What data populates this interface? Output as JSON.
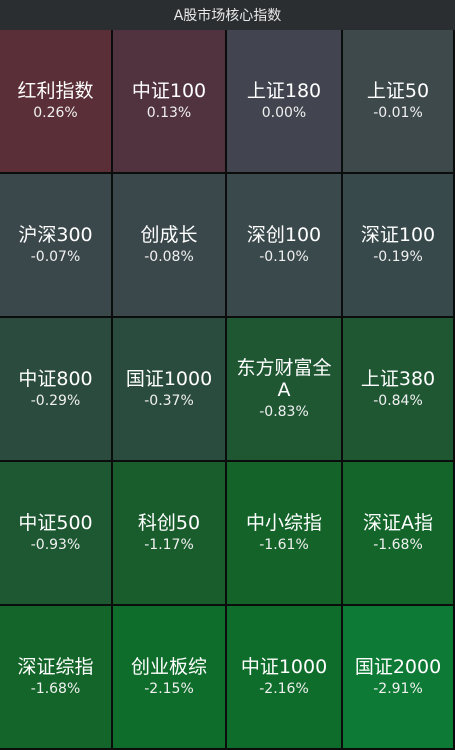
{
  "header": {
    "title": "A股市场核心指数"
  },
  "tiles": [
    {
      "name": "红利指数",
      "pct": "0.26%",
      "color": "#5a2f37"
    },
    {
      "name": "中证100",
      "pct": "0.13%",
      "color": "#513340"
    },
    {
      "name": "上证180",
      "pct": "0.00%",
      "color": "#42444f"
    },
    {
      "name": "上证50",
      "pct": "-0.01%",
      "color": "#3e494b"
    },
    {
      "name": "沪深300",
      "pct": "-0.07%",
      "color": "#3b484b"
    },
    {
      "name": "创成长",
      "pct": "-0.08%",
      "color": "#3b484b"
    },
    {
      "name": "深创100",
      "pct": "-0.10%",
      "color": "#3a494b"
    },
    {
      "name": "深证100",
      "pct": "-0.19%",
      "color": "#37494a"
    },
    {
      "name": "中证800",
      "pct": "-0.29%",
      "color": "#2c4b3f"
    },
    {
      "name": "国证1000",
      "pct": "-0.37%",
      "color": "#2a4c3e"
    },
    {
      "name": "东方财富全A",
      "pct": "-0.83%",
      "color": "#1f5733"
    },
    {
      "name": "上证380",
      "pct": "-0.84%",
      "color": "#1f5733"
    },
    {
      "name": "中证500",
      "pct": "-0.93%",
      "color": "#1d5832"
    },
    {
      "name": "科创50",
      "pct": "-1.17%",
      "color": "#195d2d"
    },
    {
      "name": "中小综指",
      "pct": "-1.61%",
      "color": "#14642a"
    },
    {
      "name": "深证A指",
      "pct": "-1.68%",
      "color": "#13652a"
    },
    {
      "name": "深证综指",
      "pct": "-1.68%",
      "color": "#13652a"
    },
    {
      "name": "创业板综",
      "pct": "-2.15%",
      "color": "#0f6d2b"
    },
    {
      "name": "中证1000",
      "pct": "-2.16%",
      "color": "#0f6d2b"
    },
    {
      "name": "国证2000",
      "pct": "-2.91%",
      "color": "#0d7a35"
    }
  ]
}
